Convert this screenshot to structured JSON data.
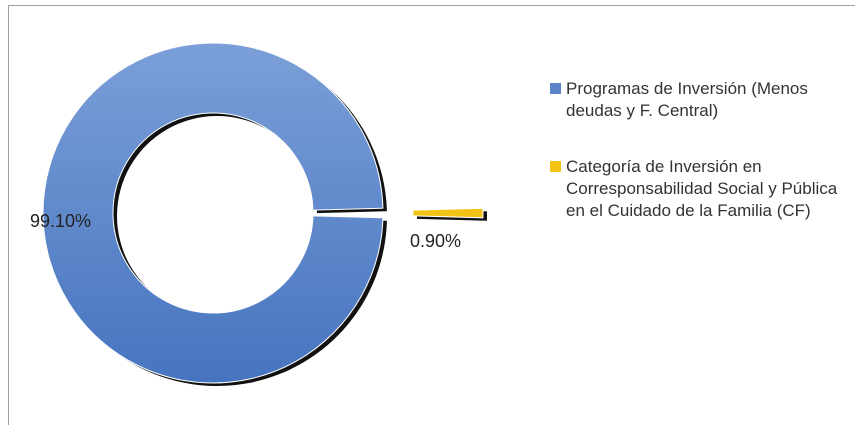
{
  "chart_data": {
    "type": "doughnut",
    "categories": [
      "Programas de Inversión (Menos deudas y F. Central)",
      "Categoría de Inversión en Corresponsabilidad Social y Pública en el Cuidado de la Familia (CF)"
    ],
    "values": [
      99.1,
      0.9
    ],
    "value_labels": [
      "99.10%",
      "0.90%"
    ],
    "colors": [
      "#5b84c8",
      "#f2c314"
    ],
    "legend": "right"
  }
}
